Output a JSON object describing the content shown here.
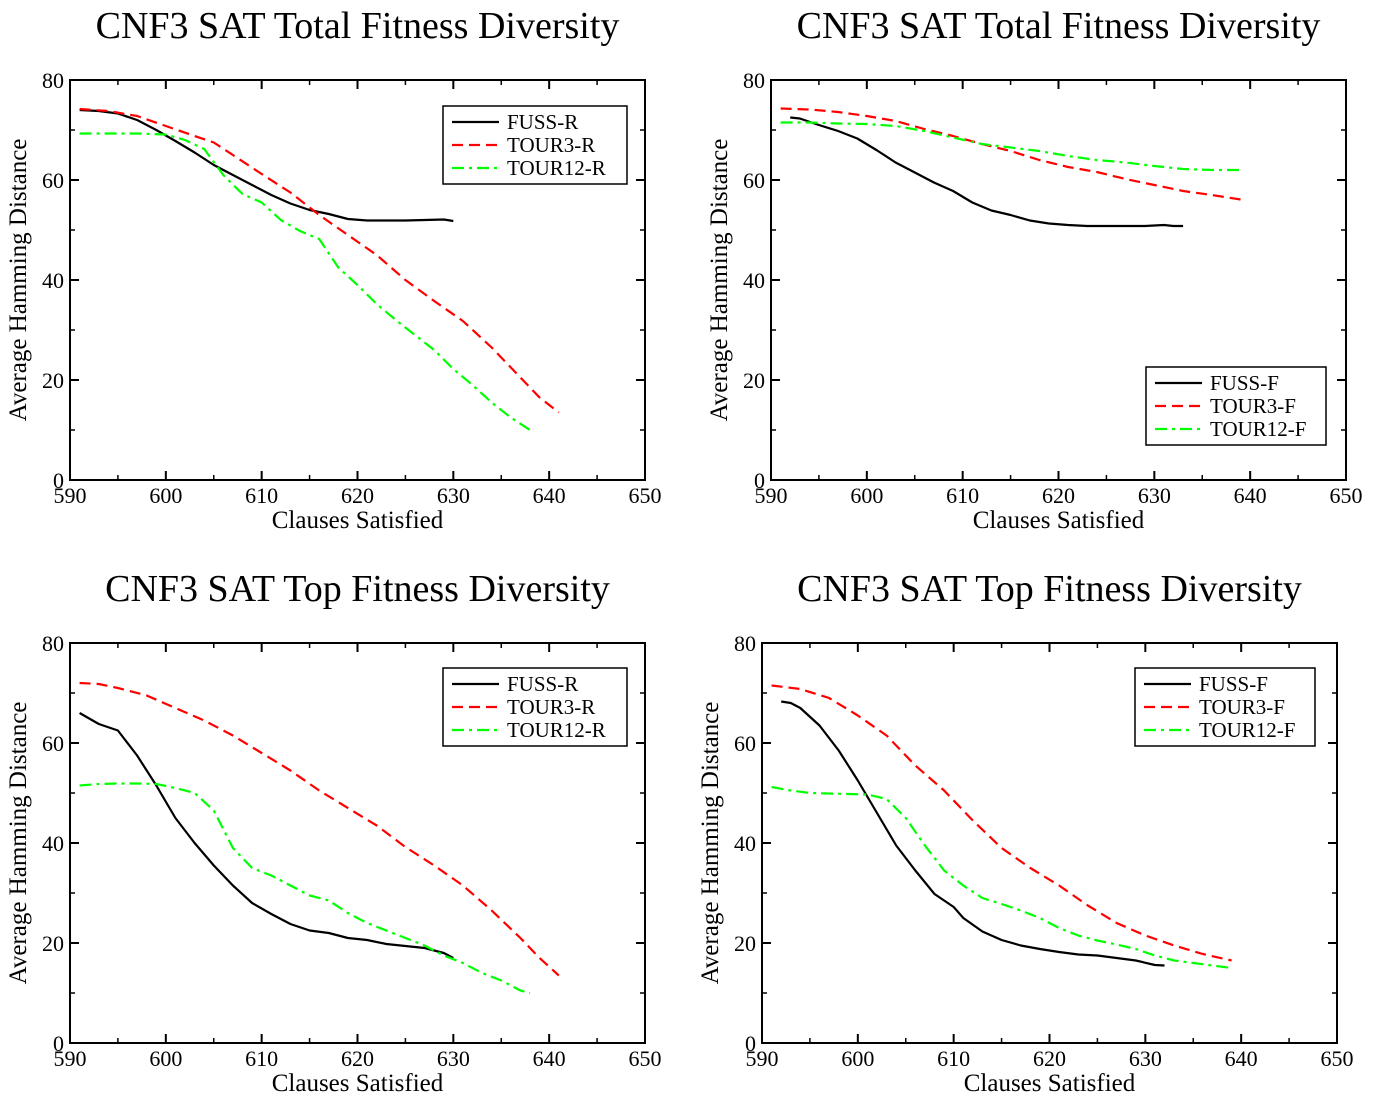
{
  "chart_data": [
    {
      "type": "line",
      "title": "CNF3 SAT Total Fitness Diversity",
      "xlabel": "Clauses Satisfied",
      "ylabel": "Average Hamming Distance",
      "xlim": [
        590,
        650
      ],
      "ylim": [
        0,
        80
      ],
      "xticks": [
        590,
        600,
        610,
        620,
        630,
        640,
        650
      ],
      "yticks": [
        0,
        20,
        40,
        60,
        80
      ],
      "grid": false,
      "legend_position": "top-right",
      "series": [
        {
          "name": "FUSS-R",
          "color": "#000000",
          "dash": "solid",
          "x": [
            591,
            593,
            595,
            597,
            599,
            601,
            603,
            605,
            607,
            609,
            611,
            613,
            615,
            617,
            619,
            621,
            623,
            625,
            627,
            629,
            630
          ],
          "y": [
            74,
            73.8,
            73.3,
            72,
            70,
            67.8,
            65.5,
            63,
            61,
            59,
            57,
            55.3,
            54,
            53.2,
            52.2,
            51.9,
            51.9,
            51.9,
            52,
            52.1,
            51.8
          ]
        },
        {
          "name": "TOUR3-R",
          "color": "#ff0000",
          "dash": "dashed",
          "x": [
            591,
            594,
            597,
            600,
            603,
            605,
            607,
            610,
            613,
            616,
            619,
            622,
            625,
            628,
            631,
            634,
            637,
            639,
            641
          ],
          "y": [
            74.2,
            73.8,
            72.8,
            70.8,
            68.8,
            67.5,
            65,
            61.2,
            57.5,
            53,
            49,
            45,
            40,
            35.8,
            31.8,
            26.5,
            20.5,
            16.5,
            13.5
          ]
        },
        {
          "name": "TOUR12-R",
          "color": "#00ff00",
          "dash": "dashdot",
          "x": [
            591,
            594,
            597,
            600,
            602,
            604,
            606,
            608,
            610,
            612,
            614,
            616,
            618,
            620,
            622,
            624,
            626,
            628,
            630,
            632,
            634,
            636,
            638
          ],
          "y": [
            69.3,
            69.3,
            69.3,
            69.1,
            68,
            66.2,
            61,
            57.2,
            55.5,
            52,
            49.8,
            48.2,
            42.5,
            39,
            35.2,
            32,
            29,
            26,
            22.2,
            19,
            15.5,
            12.5,
            10
          ]
        }
      ]
    },
    {
      "type": "line",
      "title": "CNF3 SAT Total Fitness Diversity",
      "xlabel": "Clauses Satisfied",
      "ylabel": "Average Hamming Distance",
      "xlim": [
        590,
        650
      ],
      "ylim": [
        0,
        80
      ],
      "xticks": [
        590,
        600,
        610,
        620,
        630,
        640,
        650
      ],
      "yticks": [
        0,
        20,
        40,
        60,
        80
      ],
      "grid": false,
      "legend_position": "bottom-right",
      "series": [
        {
          "name": "FUSS-F",
          "color": "#000000",
          "dash": "solid",
          "x": [
            592,
            593,
            595,
            597,
            599,
            601,
            603,
            605,
            607,
            609,
            611,
            613,
            615,
            617,
            619,
            621,
            623,
            625,
            627,
            629,
            631,
            632,
            633
          ],
          "y": [
            72.5,
            72.3,
            71,
            69.8,
            68.3,
            66,
            63.5,
            61.5,
            59.5,
            57.8,
            55.5,
            53.9,
            53,
            51.9,
            51.3,
            51,
            50.8,
            50.8,
            50.8,
            50.8,
            51,
            50.8,
            50.8
          ]
        },
        {
          "name": "TOUR3-F",
          "color": "#ff0000",
          "dash": "dashed",
          "x": [
            591,
            594,
            597,
            600,
            603,
            606,
            609,
            612,
            615,
            618,
            621,
            624,
            627,
            630,
            633,
            636,
            639
          ],
          "y": [
            74.3,
            74.1,
            73.6,
            72.8,
            71.8,
            70.2,
            68.8,
            67.2,
            65.8,
            64,
            62.6,
            61.6,
            60.2,
            59,
            57.8,
            57,
            56.1
          ]
        },
        {
          "name": "TOUR12-F",
          "color": "#00ff00",
          "dash": "dashdot",
          "x": [
            591,
            594,
            597,
            600,
            603,
            606,
            609,
            612,
            615,
            618,
            621,
            624,
            627,
            630,
            633,
            636,
            639
          ],
          "y": [
            71.5,
            71.5,
            71.3,
            71.2,
            70.8,
            69.8,
            68.5,
            67.2,
            66.5,
            65.8,
            64.8,
            64,
            63.5,
            62.8,
            62.2,
            62,
            62
          ]
        }
      ]
    },
    {
      "type": "line",
      "title": "CNF3 SAT Top Fitness Diversity",
      "xlabel": "Clauses Satisfied",
      "ylabel": "Average Hamming Distance",
      "xlim": [
        590,
        650
      ],
      "ylim": [
        0,
        80
      ],
      "xticks": [
        590,
        600,
        610,
        620,
        630,
        640,
        650
      ],
      "yticks": [
        0,
        20,
        40,
        60,
        80
      ],
      "grid": false,
      "legend_position": "top-right",
      "series": [
        {
          "name": "FUSS-R",
          "color": "#000000",
          "dash": "solid",
          "x": [
            591,
            593,
            595,
            597,
            599,
            601,
            603,
            605,
            607,
            609,
            611,
            613,
            615,
            617,
            619,
            621,
            623,
            625,
            627,
            629,
            630
          ],
          "y": [
            66,
            63.8,
            62.5,
            57.5,
            51.5,
            45,
            40,
            35.5,
            31.5,
            28,
            25.8,
            23.8,
            22.5,
            22,
            21,
            20.6,
            19.8,
            19.4,
            19,
            18,
            17
          ]
        },
        {
          "name": "TOUR3-R",
          "color": "#ff0000",
          "dash": "dashed",
          "x": [
            591,
            593,
            595,
            598,
            601,
            604,
            607,
            610,
            613,
            616,
            619,
            622,
            625,
            628,
            631,
            634,
            637,
            639,
            641
          ],
          "y": [
            72,
            71.8,
            71,
            69.5,
            67,
            64.5,
            61.5,
            58,
            54.5,
            50.5,
            47,
            43.5,
            39.2,
            35.5,
            31.5,
            26.5,
            21,
            17,
            13.5
          ]
        },
        {
          "name": "TOUR12-R",
          "color": "#00ff00",
          "dash": "dashdot",
          "x": [
            591,
            593,
            595,
            597,
            599,
            601,
            603,
            605,
            607,
            609,
            611,
            613,
            615,
            617,
            619,
            621,
            623,
            625,
            627,
            629,
            631,
            633,
            635,
            637,
            638
          ],
          "y": [
            51.5,
            51.8,
            51.9,
            51.9,
            51.8,
            51,
            50,
            46.5,
            39,
            35,
            33.5,
            31.5,
            29.5,
            28.5,
            26,
            24,
            22.5,
            21,
            19.5,
            17.5,
            16,
            14,
            12.5,
            10.5,
            10
          ]
        }
      ]
    },
    {
      "type": "line",
      "title": "CNF3 SAT Top Fitness Diversity",
      "xlabel": "Clauses Satisfied",
      "ylabel": "Average Hamming Distance",
      "xlim": [
        590,
        650
      ],
      "ylim": [
        0,
        80
      ],
      "xticks": [
        590,
        600,
        610,
        620,
        630,
        640,
        650
      ],
      "yticks": [
        0,
        20,
        40,
        60,
        80
      ],
      "grid": false,
      "legend_position": "top-right",
      "series": [
        {
          "name": "FUSS-F",
          "color": "#000000",
          "dash": "solid",
          "x": [
            592,
            593,
            594,
            596,
            598,
            600,
            602,
            604,
            606,
            608,
            610,
            611,
            613,
            615,
            617,
            619,
            621,
            623,
            625,
            627,
            629,
            631,
            632
          ],
          "y": [
            68.3,
            68,
            67,
            63.5,
            58.5,
            52.5,
            46,
            39.5,
            34.5,
            29.8,
            27.2,
            25,
            22.3,
            20.6,
            19.5,
            18.8,
            18.2,
            17.7,
            17.5,
            17,
            16.5,
            15.6,
            15.5
          ]
        },
        {
          "name": "TOUR3-F",
          "color": "#ff0000",
          "dash": "dashed",
          "x": [
            591,
            594,
            597,
            600,
            603,
            606,
            609,
            612,
            615,
            618,
            621,
            624,
            627,
            630,
            633,
            636,
            639
          ],
          "y": [
            71.5,
            70.8,
            69,
            65.5,
            61.5,
            55.5,
            50.5,
            44.5,
            39,
            35,
            31.5,
            27.5,
            24,
            21.5,
            19.5,
            17.8,
            16.5
          ]
        },
        {
          "name": "TOUR12-F",
          "color": "#00ff00",
          "dash": "dashdot",
          "x": [
            591,
            593,
            595,
            597,
            599,
            601,
            603,
            605,
            607,
            609,
            611,
            613,
            615,
            617,
            619,
            621,
            623,
            625,
            627,
            629,
            631,
            633,
            635,
            637,
            639
          ],
          "y": [
            51.2,
            50.5,
            50,
            49.9,
            49.8,
            49.7,
            48.8,
            45,
            39.5,
            34.5,
            31.5,
            29,
            27.8,
            26.5,
            25,
            23,
            21.5,
            20.5,
            19.7,
            18.8,
            17.5,
            16.5,
            16,
            15.5,
            15
          ]
        }
      ]
    }
  ]
}
